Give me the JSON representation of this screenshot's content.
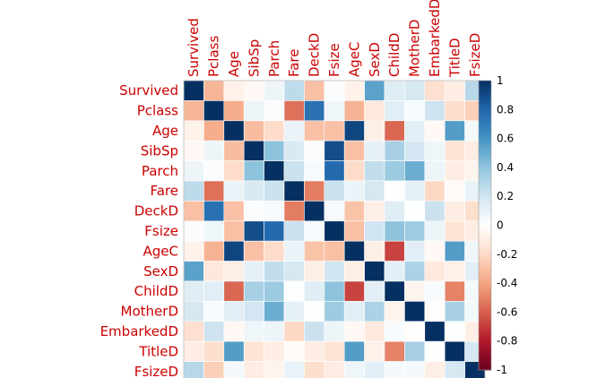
{
  "chart_data": {
    "type": "heatmap",
    "title": "",
    "rows": [
      "Survived",
      "Pclass",
      "Age",
      "SibSp",
      "Parch",
      "Fare",
      "DeckD",
      "Fsize",
      "AgeC",
      "SexD",
      "ChildD",
      "MotherD",
      "EmbarkedD",
      "TitleD",
      "FsizeD"
    ],
    "columns": [
      "Survived",
      "Pclass",
      "Age",
      "SibSp",
      "Parch",
      "Fare",
      "DeckD",
      "Fsize",
      "AgeC",
      "SexD",
      "ChildD",
      "MotherD",
      "EmbarkedD",
      "TitleD",
      "FsizeD"
    ],
    "values": [
      [
        1.0,
        -0.34,
        -0.07,
        -0.04,
        0.08,
        0.26,
        -0.3,
        0.02,
        -0.07,
        0.54,
        0.14,
        0.18,
        -0.17,
        -0.1,
        0.28
      ],
      [
        -0.34,
        1.0,
        -0.37,
        0.08,
        0.02,
        -0.55,
        0.75,
        0.07,
        -0.35,
        -0.13,
        0.13,
        0.03,
        0.21,
        -0.18,
        -0.24
      ],
      [
        -0.07,
        -0.37,
        1.0,
        -0.31,
        -0.19,
        0.09,
        -0.3,
        -0.3,
        0.92,
        -0.09,
        -0.58,
        0.13,
        -0.04,
        0.56,
        0.05
      ],
      [
        -0.04,
        0.08,
        -0.31,
        1.0,
        0.41,
        0.16,
        0.02,
        0.89,
        -0.3,
        0.11,
        0.33,
        0.19,
        0.07,
        -0.15,
        -0.1
      ],
      [
        0.08,
        0.02,
        -0.19,
        0.41,
        1.0,
        0.22,
        0.04,
        0.78,
        -0.19,
        0.25,
        0.37,
        0.5,
        0.08,
        -0.1,
        -0.06
      ],
      [
        0.26,
        -0.55,
        0.09,
        0.16,
        0.22,
        1.0,
        -0.52,
        0.22,
        0.09,
        0.18,
        0.01,
        0.11,
        -0.21,
        -0.02,
        0.1
      ],
      [
        -0.3,
        0.75,
        -0.3,
        0.02,
        0.04,
        -0.52,
        1.0,
        0.04,
        -0.29,
        -0.09,
        0.14,
        0.01,
        0.22,
        -0.1,
        -0.18
      ],
      [
        0.02,
        0.07,
        -0.3,
        0.89,
        0.78,
        0.22,
        0.04,
        1.0,
        -0.3,
        0.2,
        0.41,
        0.36,
        0.08,
        -0.15,
        -0.1
      ],
      [
        -0.07,
        -0.35,
        0.92,
        -0.3,
        -0.19,
        0.09,
        -0.29,
        -0.3,
        1.0,
        -0.09,
        -0.68,
        0.13,
        -0.04,
        0.56,
        0.07
      ],
      [
        0.54,
        -0.13,
        -0.09,
        0.11,
        0.25,
        0.18,
        -0.09,
        0.2,
        -0.09,
        1.0,
        0.12,
        0.32,
        -0.12,
        -0.08,
        0.12
      ],
      [
        0.14,
        0.13,
        -0.58,
        0.33,
        0.37,
        0.01,
        0.14,
        0.41,
        -0.68,
        0.12,
        1.0,
        -0.06,
        0.03,
        -0.5,
        0.05
      ],
      [
        0.18,
        0.03,
        0.13,
        0.19,
        0.5,
        0.11,
        0.01,
        0.36,
        0.13,
        0.32,
        -0.06,
        1.0,
        -0.01,
        0.33,
        0.05
      ],
      [
        -0.17,
        0.21,
        -0.04,
        0.07,
        0.08,
        -0.21,
        0.22,
        0.08,
        -0.04,
        -0.12,
        0.03,
        -0.01,
        1.0,
        0.01,
        -0.09
      ],
      [
        -0.1,
        -0.18,
        0.56,
        -0.15,
        -0.1,
        -0.02,
        -0.1,
        -0.15,
        0.56,
        -0.08,
        -0.5,
        0.33,
        0.01,
        1.0,
        0.18
      ],
      [
        0.28,
        -0.24,
        0.05,
        -0.1,
        -0.06,
        0.1,
        -0.18,
        -0.1,
        0.07,
        0.12,
        0.05,
        0.05,
        -0.09,
        0.18,
        1.0
      ]
    ],
    "colorbar": {
      "ticks": [
        "1",
        "0.8",
        "0.6",
        "0.4",
        "0.2",
        "0",
        "-0.2",
        "-0.4",
        "-0.6",
        "-0.8",
        "-1"
      ],
      "range": [
        -1,
        1
      ],
      "palette": [
        "#67001f",
        "#b2182b",
        "#d6604d",
        "#f4a582",
        "#fddbc7",
        "#ffffff",
        "#d1e5f0",
        "#92c5de",
        "#4393c3",
        "#2166ac",
        "#053061"
      ]
    },
    "label_color": "#cc0000",
    "legend_position": "right"
  }
}
